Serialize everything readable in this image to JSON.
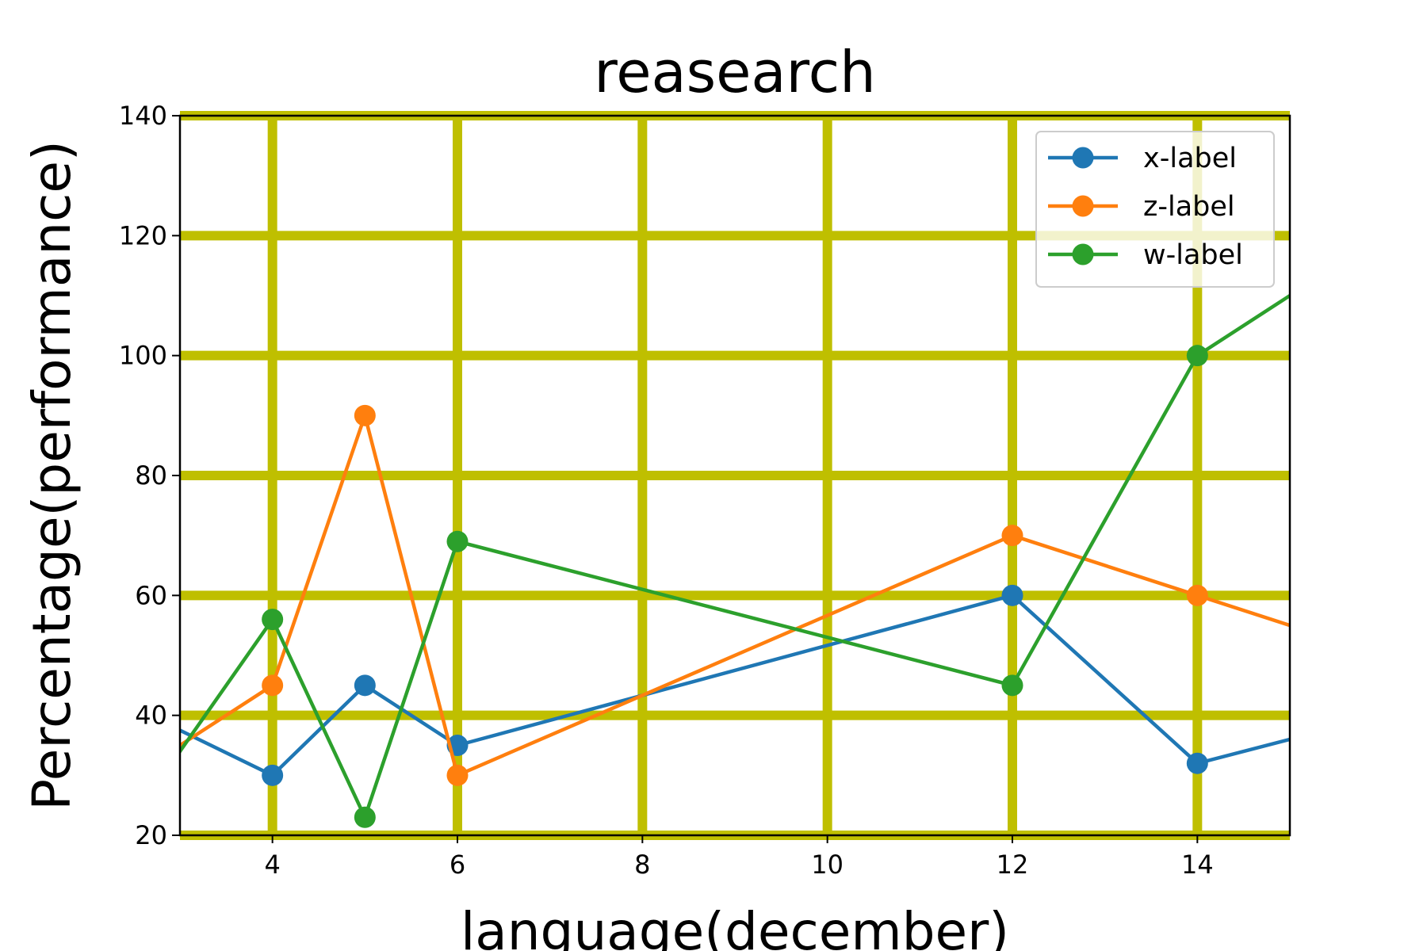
{
  "chart_data": {
    "type": "line",
    "title": "reasearch",
    "xlabel": "language(december)",
    "ylabel": "Percentage(performance)",
    "xlim": [
      3,
      15
    ],
    "ylim": [
      20,
      140
    ],
    "xticks": [
      4,
      6,
      8,
      10,
      12,
      14
    ],
    "yticks": [
      20,
      40,
      60,
      80,
      100,
      120,
      140
    ],
    "grid": true,
    "grid_color": "#bfbf00",
    "legend_position": "top-right",
    "series": [
      {
        "name": "x-label",
        "color": "#1f77b4",
        "points": [
          [
            2,
            45
          ],
          [
            4,
            30
          ],
          [
            5,
            45
          ],
          [
            6,
            35
          ],
          [
            12,
            60
          ],
          [
            14,
            32
          ],
          [
            16,
            40
          ]
        ]
      },
      {
        "name": "z-label",
        "color": "#ff7f0e",
        "points": [
          [
            2,
            25
          ],
          [
            4,
            45
          ],
          [
            5,
            90
          ],
          [
            6,
            30
          ],
          [
            12,
            70
          ],
          [
            14,
            60
          ],
          [
            16,
            50
          ]
        ]
      },
      {
        "name": "w-label",
        "color": "#2ca02c",
        "points": [
          [
            2,
            12
          ],
          [
            4,
            56
          ],
          [
            5,
            23
          ],
          [
            6,
            69
          ],
          [
            12,
            45
          ],
          [
            14,
            100
          ],
          [
            16,
            120
          ]
        ]
      }
    ]
  }
}
